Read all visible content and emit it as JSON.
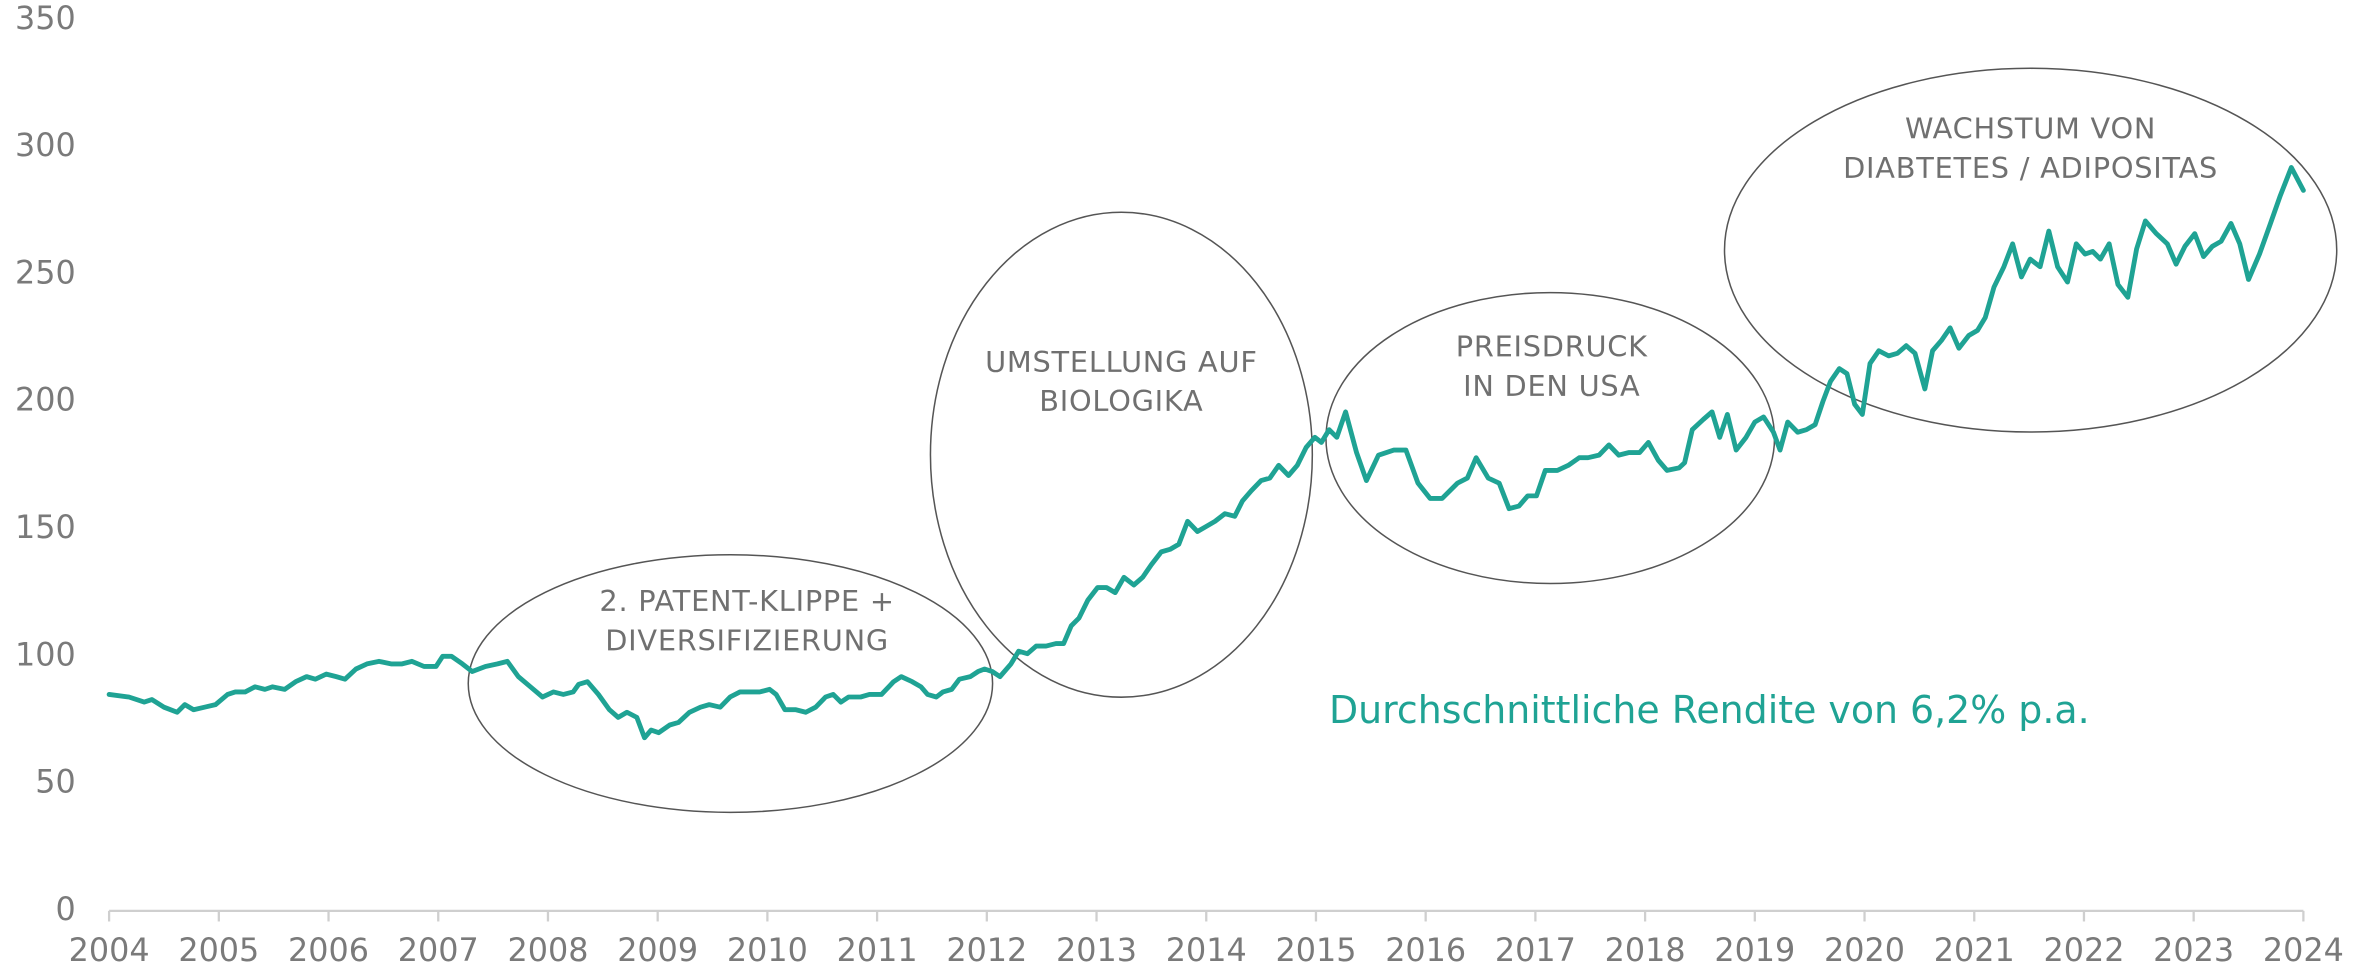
{
  "chart_data": {
    "type": "line",
    "color": "#1fa394",
    "grid": false,
    "xlim": [
      2004,
      2024
    ],
    "xticks": [
      2004,
      2005,
      2006,
      2007,
      2008,
      2009,
      2010,
      2011,
      2012,
      2013,
      2014,
      2015,
      2016,
      2017,
      2018,
      2019,
      2020,
      2021,
      2022,
      2023,
      2024
    ],
    "ylim": [
      0,
      350
    ],
    "yticks": [
      0,
      50,
      100,
      150,
      200,
      250,
      300,
      350
    ],
    "annotations": [
      {
        "lines": [
          "2. PATENT-KLIPPE +",
          "DIVERSIFIZIERUNG"
        ]
      },
      {
        "lines": [
          "UMSTELLUNG AUF",
          "BIOLOGIKA"
        ]
      },
      {
        "lines": [
          "PREISDRUCK",
          "IN DEN USA"
        ]
      },
      {
        "lines": [
          "WACHSTUM VON",
          "DIABTETES / ADIPOSITAS"
        ]
      }
    ],
    "note": "Durchschnittliche Rendite von 6,2% p.a.",
    "x": [
      2004.0,
      2004.18,
      2004.32,
      2004.39,
      2004.5,
      2004.62,
      2004.69,
      2004.77,
      2004.87,
      2004.97,
      2005.08,
      2005.15,
      2005.24,
      2005.33,
      2005.42,
      2005.49,
      2005.6,
      2005.7,
      2005.8,
      2005.88,
      2005.98,
      2006.07,
      2006.15,
      2006.25,
      2006.35,
      2006.46,
      2006.57,
      2006.67,
      2006.76,
      2006.87,
      2006.98,
      2007.04,
      2007.12,
      2007.22,
      2007.31,
      2007.43,
      2007.54,
      2007.63,
      2007.73,
      2007.84,
      2007.95,
      2008.05,
      2008.14,
      2008.23,
      2008.28,
      2008.36,
      2008.46,
      2008.56,
      2008.64,
      2008.72,
      2008.81,
      2008.88,
      2008.94,
      2009.01,
      2009.11,
      2009.19,
      2009.29,
      2009.39,
      2009.47,
      2009.57,
      2009.66,
      2009.75,
      2009.84,
      2009.93,
      2010.02,
      2010.08,
      2010.16,
      2010.26,
      2010.35,
      2010.44,
      2010.53,
      2010.6,
      2010.67,
      2010.74,
      2010.85,
      2010.93,
      2011.04,
      2011.15,
      2011.22,
      2011.32,
      2011.4,
      2011.46,
      2011.54,
      2011.6,
      2011.68,
      2011.75,
      2011.85,
      2011.92,
      2011.98,
      2012.05,
      2012.12,
      2012.22,
      2012.29,
      2012.37,
      2012.45,
      2012.54,
      2012.63,
      2012.7,
      2012.77,
      2012.84,
      2012.92,
      2013.01,
      2013.09,
      2013.17,
      2013.25,
      2013.34,
      2013.42,
      2013.5,
      2013.59,
      2013.67,
      2013.75,
      2013.83,
      2013.92,
      2014.0,
      2014.08,
      2014.17,
      2014.26,
      2014.33,
      2014.41,
      2014.5,
      2014.58,
      2014.66,
      2014.75,
      2014.83,
      2014.91,
      2014.99,
      2015.05,
      2015.12,
      2015.19,
      2015.27,
      2015.37,
      2015.46,
      2015.57,
      2015.71,
      2015.82,
      2015.93,
      2016.04,
      2016.15,
      2016.29,
      2016.38,
      2016.46,
      2016.57,
      2016.67,
      2016.76,
      2016.85,
      2016.93,
      2017.01,
      2017.09,
      2017.2,
      2017.3,
      2017.4,
      2017.48,
      2017.58,
      2017.67,
      2017.76,
      2017.85,
      2017.95,
      2018.03,
      2018.12,
      2018.2,
      2018.31,
      2018.36,
      2018.43,
      2018.53,
      2018.61,
      2018.68,
      2018.75,
      2018.83,
      2018.92,
      2019.0,
      2019.08,
      2019.17,
      2019.23,
      2019.3,
      2019.39,
      2019.47,
      2019.55,
      2019.62,
      2019.69,
      2019.77,
      2019.84,
      2019.91,
      2019.98,
      2020.05,
      2020.13,
      2020.22,
      2020.3,
      2020.38,
      2020.46,
      2020.55,
      2020.62,
      2020.7,
      2020.78,
      2020.86,
      2020.95,
      2021.03,
      2021.1,
      2021.18,
      2021.27,
      2021.35,
      2021.43,
      2021.51,
      2021.6,
      2021.68,
      2021.76,
      2021.85,
      2021.93,
      2022.01,
      2022.08,
      2022.15,
      2022.23,
      2022.31,
      2022.4,
      2022.48,
      2022.56,
      2022.66,
      2022.76,
      2022.84,
      2022.92,
      2023.01,
      2023.09,
      2023.17,
      2023.25,
      2023.34,
      2023.42,
      2023.5,
      2023.6,
      2023.7,
      2023.79,
      2023.89,
      2024.0
    ],
    "values": [
      85,
      84,
      82,
      83,
      80,
      78,
      81,
      79,
      80,
      81,
      85,
      86,
      86,
      88,
      87,
      88,
      87,
      90,
      92,
      91,
      93,
      92,
      91,
      95,
      97,
      98,
      97,
      97,
      98,
      96,
      96,
      100,
      100,
      97,
      94,
      96,
      97,
      98,
      92,
      88,
      84,
      86,
      85,
      86,
      89,
      90,
      85,
      79,
      76,
      78,
      76,
      68,
      71,
      70,
      73,
      74,
      78,
      80,
      81,
      80,
      84,
      86,
      86,
      86,
      87,
      85,
      79,
      79,
      78,
      80,
      84,
      85,
      82,
      84,
      84,
      85,
      85,
      90,
      92,
      90,
      88,
      85,
      84,
      86,
      87,
      91,
      92,
      94,
      95,
      94,
      92,
      97,
      102,
      101,
      104,
      104,
      105,
      105,
      112,
      115,
      122,
      127,
      127,
      125,
      131,
      128,
      131,
      136,
      141,
      142,
      144,
      153,
      149,
      151,
      153,
      156,
      155,
      161,
      165,
      169,
      170,
      175,
      171,
      175,
      182,
      186,
      184,
      189,
      186,
      196,
      180,
      169,
      179,
      181,
      181,
      168,
      162,
      162,
      168,
      170,
      178,
      170,
      168,
      158,
      159,
      163,
      163,
      173,
      173,
      175,
      178,
      178,
      179,
      183,
      179,
      180,
      180,
      184,
      177,
      173,
      174,
      176,
      189,
      193,
      196,
      186,
      195,
      181,
      186,
      192,
      194,
      188,
      181,
      192,
      188,
      189,
      191,
      200,
      208,
      213,
      211,
      199,
      195,
      215,
      220,
      218,
      219,
      222,
      219,
      205,
      220,
      224,
      229,
      221,
      226,
      228,
      233,
      245,
      253,
      262,
      249,
      256,
      253,
      267,
      253,
      247,
      262,
      258,
      259,
      256,
      262,
      246,
      241,
      260,
      271,
      266,
      262,
      254,
      261,
      266,
      257,
      261,
      263,
      270,
      262,
      248,
      258,
      270,
      281,
      292,
      283
    ]
  }
}
